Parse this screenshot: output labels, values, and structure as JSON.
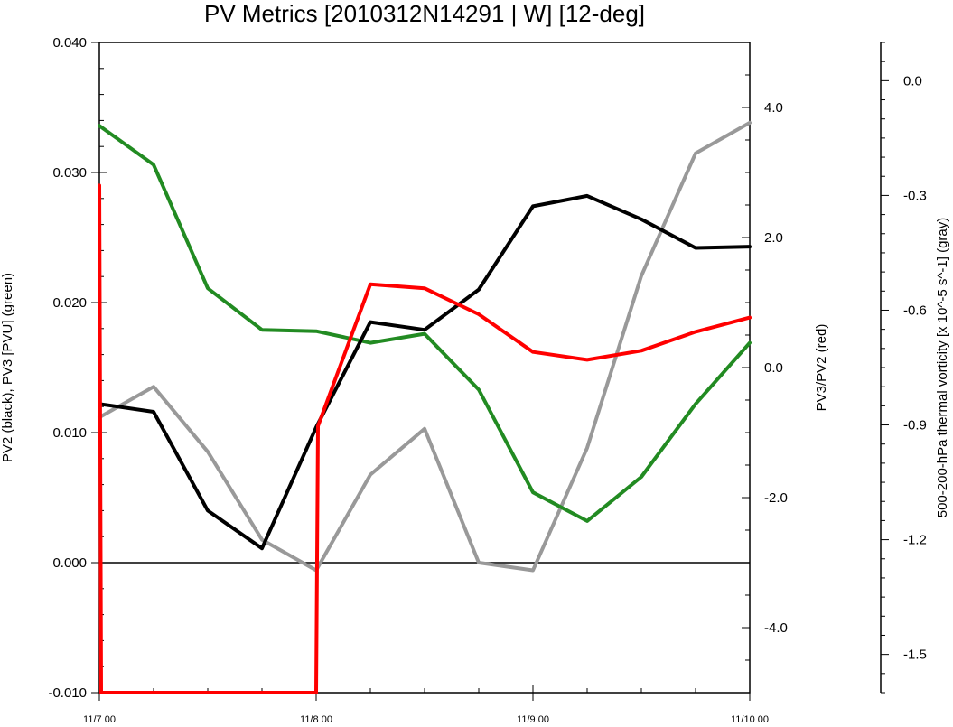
{
  "chart_data": {
    "type": "line",
    "title": "PV Metrics [2010312N14291 | W] [12-deg]",
    "x_tick_labels": [
      "11/7 00",
      "11/8 00",
      "11/9 00",
      "11/10 00"
    ],
    "x": [
      0,
      6,
      12,
      18,
      24,
      30,
      36,
      42,
      48,
      54,
      60,
      66,
      72
    ],
    "axes": {
      "left": {
        "label": "PV2 (black), PV3 [PVU] (green)",
        "range": [
          -0.01,
          0.04
        ],
        "ticks": [
          "-0.010",
          "0.000",
          "0.010",
          "0.020",
          "0.030",
          "0.040"
        ]
      },
      "right1": {
        "label": "PV3/PV2 (red)",
        "range": [
          -5.0,
          5.0
        ],
        "ticks": [
          "-4.0",
          "-2.0",
          "0.0",
          "2.0",
          "4.0"
        ]
      },
      "right2": {
        "label": "500-200-hPa thermal vorticity [x 10^-5 s^-1] (gray)",
        "range": [
          -1.6,
          0.1
        ],
        "ticks": [
          "-1.5",
          "-1.2",
          "-0.9",
          "-0.6",
          "-0.3",
          "0.0"
        ]
      }
    },
    "series": [
      {
        "axis": "left",
        "color": "#000000",
        "x": [
          0,
          6,
          12,
          18,
          24,
          30,
          36,
          42,
          48,
          54,
          60,
          66,
          72
        ],
        "values": [
          0.0122,
          0.0116,
          0.004,
          0.0011,
          0.0104,
          0.0185,
          0.0179,
          0.021,
          0.0274,
          0.0282,
          0.0264,
          0.0242,
          0.0243
        ]
      },
      {
        "axis": "left",
        "color": "#228b22",
        "x": [
          0,
          6,
          12,
          18,
          24,
          30,
          36,
          42,
          48,
          54,
          60,
          66,
          72
        ],
        "values": [
          0.0336,
          0.0306,
          0.0211,
          0.0179,
          0.0178,
          0.0169,
          0.0176,
          0.0133,
          0.0054,
          0.0032,
          0.0066,
          0.0122,
          0.0169
        ]
      },
      {
        "axis": "right1",
        "color": "#ff0000",
        "x": [
          0,
          0.2,
          24,
          24.2,
          30,
          36,
          42,
          48,
          54,
          60,
          66,
          72
        ],
        "values": [
          2.8,
          -5.0,
          -5.0,
          -0.9,
          1.28,
          1.22,
          0.82,
          0.24,
          0.12,
          0.26,
          0.55,
          0.77
        ]
      },
      {
        "axis": "right2",
        "color": "#999999",
        "x": [
          0,
          6,
          12,
          18,
          24,
          30,
          36,
          42,
          48,
          54,
          60,
          66,
          72
        ],
        "values": [
          -0.88,
          -0.8,
          -0.97,
          -1.2,
          -1.28,
          -1.03,
          -0.91,
          -1.26,
          -1.28,
          -0.96,
          -0.51,
          -0.19,
          -0.11
        ]
      }
    ],
    "zero_line_left": 0.0
  }
}
